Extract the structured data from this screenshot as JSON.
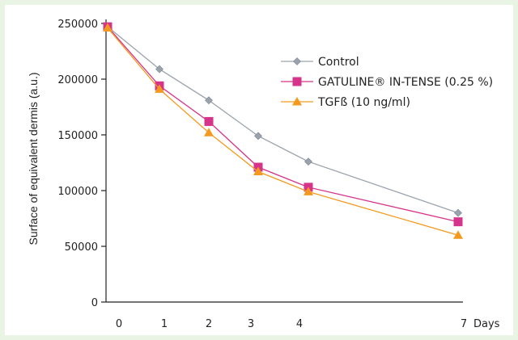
{
  "chart_data": {
    "type": "line",
    "title": "",
    "xlabel": "Days",
    "ylabel": "Surface of equivalent dermis (a.u.)",
    "x_ticks": [
      0,
      1,
      2,
      3,
      4,
      7
    ],
    "x_tick_labels": [
      "0",
      "1",
      "2",
      "3",
      "4",
      "7"
    ],
    "y_ticks": [
      0,
      50000,
      100000,
      150000,
      200000,
      250000
    ],
    "y_tick_labels": [
      "0",
      "50000",
      "100000",
      "150000",
      "200000",
      "250000"
    ],
    "ylim": [
      0,
      250000
    ],
    "legend_position": "top-right",
    "grid": false,
    "series": [
      {
        "name": "Control",
        "color": "#9aa3ad",
        "marker": "diamond",
        "x": [
          0,
          1,
          2,
          3,
          4,
          7
        ],
        "y": [
          247000,
          209000,
          181000,
          149000,
          126000,
          80000
        ]
      },
      {
        "name": "GATULINE® IN-TENSE (0.25 %)",
        "color": "#d6338a",
        "marker": "square",
        "x": [
          0,
          1,
          2,
          3,
          4,
          7
        ],
        "y": [
          247000,
          194000,
          162000,
          121000,
          103000,
          72000
        ]
      },
      {
        "name": "TGFß (10 ng/ml)",
        "color": "#f39a1e",
        "marker": "triangle",
        "x": [
          0,
          1,
          2,
          3,
          4,
          7
        ],
        "y": [
          246000,
          191000,
          152000,
          117000,
          99000,
          60000
        ]
      }
    ]
  }
}
